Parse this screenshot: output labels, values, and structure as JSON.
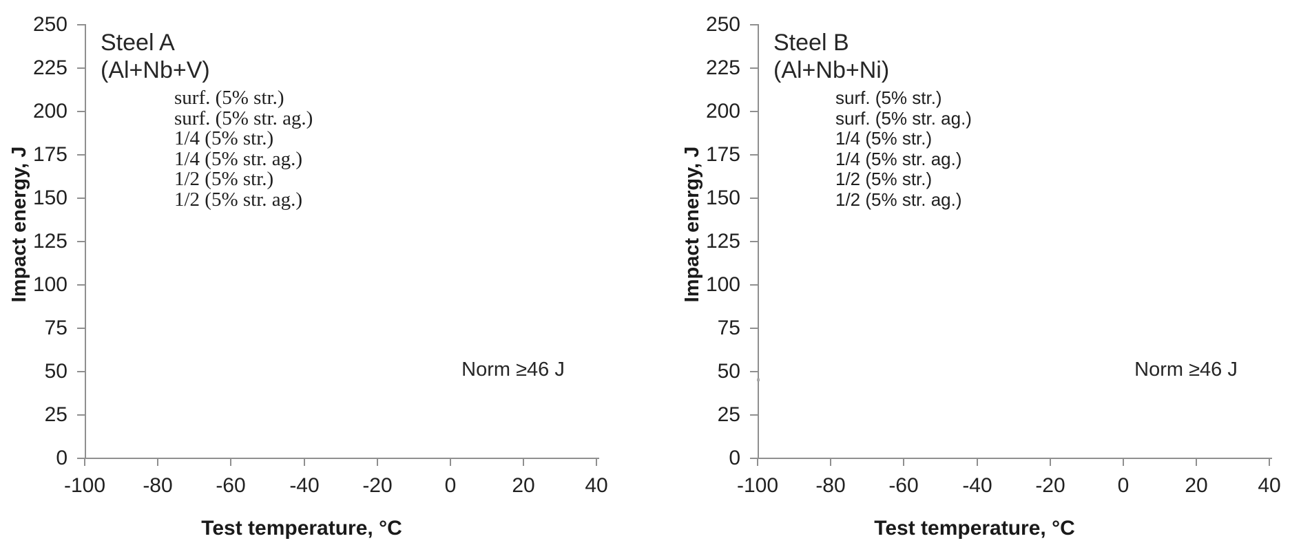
{
  "colors": {
    "text": "#212121",
    "axis": "#8f8f8f",
    "background": "#ffffff"
  },
  "chart_data": [
    {
      "type": "scatter",
      "title_lines": [
        "Steel A",
        "(Al+Nb+V)"
      ],
      "xlabel": "Test temperature, °C",
      "ylabel": "Impact energy, J",
      "xlim": [
        -100,
        40
      ],
      "ylim": [
        0,
        250
      ],
      "x_ticks": [
        -100,
        -80,
        -60,
        -40,
        -20,
        0,
        20,
        40
      ],
      "y_ticks": [
        0,
        25,
        50,
        75,
        100,
        125,
        150,
        175,
        200,
        225,
        250
      ],
      "grid": false,
      "legend_position": "upper-left-inside",
      "legend": [
        "surf. (5% str.)",
        "surf. (5% str. ag.)",
        "1/4 (5% str.)",
        "1/4 (5% str. ag.)",
        "1/2 (5% str.)",
        "1/2 (5% str. ag.)"
      ],
      "series": [
        {
          "name": "surf. (5% str.)",
          "x": [],
          "y": []
        },
        {
          "name": "surf. (5% str. ag.)",
          "x": [],
          "y": []
        },
        {
          "name": "1/4 (5% str.)",
          "x": [],
          "y": []
        },
        {
          "name": "1/4 (5% str. ag.)",
          "x": [],
          "y": []
        },
        {
          "name": "1/2 (5% str.)",
          "x": [],
          "y": []
        },
        {
          "name": "1/2 (5% str. ag.)",
          "x": [],
          "y": []
        }
      ],
      "annotation": {
        "text": "Norm ≥46 J",
        "x": 8,
        "y": 52
      }
    },
    {
      "type": "scatter",
      "title_lines": [
        "Steel B",
        "(Al+Nb+Ni)"
      ],
      "xlabel": "Test temperature, °C",
      "ylabel": "Impact energy, J",
      "xlim": [
        -100,
        40
      ],
      "ylim": [
        0,
        250
      ],
      "x_ticks": [
        -100,
        -80,
        -60,
        -40,
        -20,
        0,
        20,
        40
      ],
      "y_ticks": [
        0,
        25,
        50,
        75,
        100,
        125,
        150,
        175,
        200,
        225,
        250
      ],
      "grid": false,
      "legend_position": "upper-left-inside",
      "legend": [
        "surf. (5% str.)",
        "surf. (5% str. ag.)",
        "1/4 (5% str.)",
        "1/4 (5% str. ag.)",
        "1/2 (5% str.)",
        "1/2 (5% str. ag.)"
      ],
      "series": [
        {
          "name": "surf. (5% str.)",
          "x": [],
          "y": []
        },
        {
          "name": "surf. (5% str. ag.)",
          "x": [],
          "y": []
        },
        {
          "name": "1/4 (5% str.)",
          "x": [],
          "y": []
        },
        {
          "name": "1/4 (5% str. ag.)",
          "x": [],
          "y": []
        },
        {
          "name": "1/2 (5% str.)",
          "x": [],
          "y": []
        },
        {
          "name": "1/2 (5% str. ag.)",
          "x": [],
          "y": []
        }
      ],
      "annotation": {
        "text": "Norm ≥46 J",
        "x": 8,
        "y": 52
      }
    }
  ]
}
